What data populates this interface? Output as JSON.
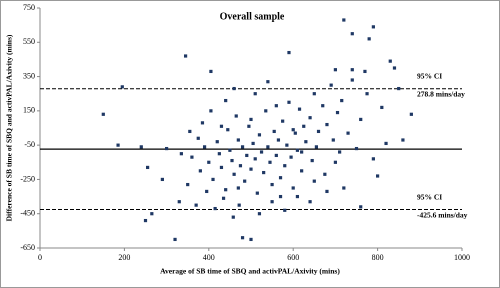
{
  "chart_data": {
    "type": "scatter",
    "title": "Overall sample",
    "x_label": "Average of SB time of SBQ and activPAL/Axivity  (mins)",
    "y_label": "Difference of SB time of SBQ and activPAL/Axivity  (mins)",
    "color": "#1f3864",
    "xlim": [
      0,
      1000
    ],
    "xticks": [
      0,
      200,
      400,
      600,
      800,
      1000
    ],
    "ylim": [
      -650,
      750
    ],
    "yticks": [
      -650,
      -450,
      -250,
      -50,
      150,
      350,
      550,
      750
    ],
    "grid": false,
    "ref_lines": [
      {
        "value": -73.4,
        "style": "solid"
      },
      {
        "value": 278.8,
        "style": "dashed",
        "ci": "95% CI",
        "label": "278.8 mins/day"
      },
      {
        "value": -425.6,
        "style": "dashed",
        "ci": "95% CI",
        "label": "-425.6 mins/day"
      }
    ],
    "x": [
      150,
      195,
      185,
      240,
      250,
      265,
      255,
      300,
      320,
      330,
      345,
      290,
      375,
      405,
      480,
      500,
      590,
      720,
      740,
      780,
      790,
      830,
      840,
      850,
      880,
      720,
      760,
      800,
      700,
      640,
      360,
      380,
      390,
      400,
      410,
      420,
      425,
      430,
      440,
      445,
      450,
      455,
      460,
      465,
      470,
      475,
      480,
      485,
      490,
      495,
      500,
      505,
      510,
      515,
      520,
      525,
      530,
      535,
      540,
      545,
      550,
      555,
      560,
      565,
      570,
      575,
      580,
      585,
      590,
      595,
      600,
      605,
      610,
      615,
      620,
      625,
      630,
      640,
      645,
      650,
      655,
      660,
      670,
      675,
      680,
      690,
      695,
      705,
      710,
      715,
      730,
      740,
      750,
      760,
      770,
      775,
      790,
      810,
      820,
      860,
      350,
      370,
      395,
      415,
      435,
      458,
      472,
      520,
      550,
      580,
      610,
      335,
      355,
      385,
      405,
      440,
      460,
      510,
      540,
      560,
      700,
      740,
      680,
      650,
      620,
      470,
      430,
      500,
      570,
      600
    ],
    "values": [
      130,
      290,
      -50,
      -60,
      -490,
      -450,
      -180,
      -70,
      -600,
      -380,
      470,
      -250,
      -10,
      380,
      -590,
      -600,
      490,
      680,
      600,
      570,
      640,
      440,
      400,
      280,
      130,
      -300,
      -410,
      -230,
      -150,
      -380,
      -120,
      -200,
      -60,
      -150,
      -250,
      -30,
      -100,
      -180,
      -310,
      40,
      -80,
      -140,
      -220,
      120,
      -20,
      -170,
      -60,
      -260,
      -110,
      60,
      -190,
      -40,
      -130,
      -330,
      10,
      -90,
      -210,
      150,
      -60,
      -150,
      -280,
      30,
      -110,
      -20,
      -240,
      90,
      -170,
      -50,
      200,
      -120,
      -300,
      20,
      -80,
      160,
      -200,
      60,
      -30,
      110,
      -140,
      250,
      -60,
      30,
      180,
      -220,
      70,
      300,
      -20,
      140,
      -90,
      210,
      20,
      330,
      -70,
      100,
      380,
      250,
      -130,
      170,
      -40,
      -20,
      -280,
      -400,
      -320,
      -420,
      -360,
      -470,
      -400,
      -450,
      -380,
      -430,
      -350,
      -100,
      30,
      80,
      150,
      210,
      280,
      250,
      320,
      180,
      390,
      390,
      -320,
      -260,
      -90,
      -300,
      60,
      100,
      -350,
      40
    ]
  }
}
